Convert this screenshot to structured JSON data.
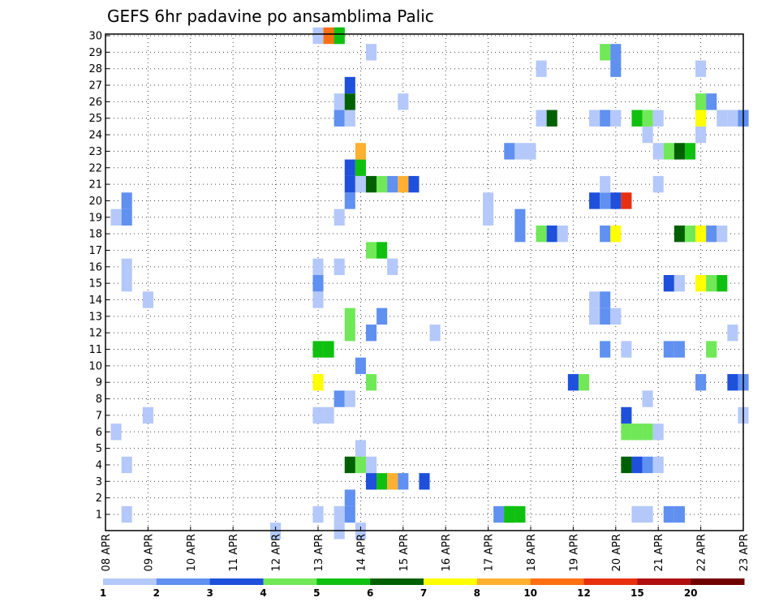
{
  "chart_data": {
    "type": "heatmap",
    "title": "GEFS 6hr padavine po ansamblima Palic",
    "x_ticks": [
      "08 APR",
      "09 APR",
      "10 APR",
      "11 APR",
      "12 APR",
      "13 APR",
      "14 APR",
      "15 APR",
      "16 APR",
      "17 APR",
      "18 APR",
      "19 APR",
      "20 APR",
      "21 APR",
      "22 APR",
      "23 APR"
    ],
    "y_ticks": [
      "1",
      "2",
      "3",
      "4",
      "5",
      "6",
      "7",
      "8",
      "9",
      "10",
      "11",
      "12",
      "13",
      "14",
      "15",
      "16",
      "17",
      "18",
      "19",
      "20",
      "21",
      "22",
      "23",
      "24",
      "25",
      "26",
      "27",
      "28",
      "29",
      "30"
    ],
    "x_unit": "6-hour step (0 = 08 APR 00Z, 4 steps per day)",
    "x_range": [
      0,
      60
    ],
    "y_range": [
      1,
      30
    ],
    "grid": true,
    "colorbar": {
      "labels": [
        "1",
        "2",
        "3",
        "4",
        "5",
        "6",
        "7",
        "8",
        "10",
        "12",
        "15",
        "20"
      ],
      "colors": [
        "#b4c8fa",
        "#6090f0",
        "#1e50dc",
        "#70e858",
        "#10c010",
        "#006000",
        "#ffff00",
        "#ffb030",
        "#ff7010",
        "#e83010",
        "#b01010",
        "#700000"
      ]
    },
    "cells": [
      [
        2,
        1,
        1
      ],
      [
        2,
        19,
        2
      ],
      [
        2,
        20,
        2
      ],
      [
        1,
        19,
        1
      ],
      [
        1,
        6,
        1
      ],
      [
        2,
        4,
        1
      ],
      [
        2,
        16,
        1
      ],
      [
        2,
        15,
        1
      ],
      [
        4,
        14,
        1
      ],
      [
        4,
        7,
        1
      ],
      [
        16,
        0,
        1
      ],
      [
        20,
        30,
        1
      ],
      [
        21,
        30,
        9
      ],
      [
        22,
        30,
        5
      ],
      [
        20,
        1,
        1
      ],
      [
        20,
        14,
        1
      ],
      [
        20,
        15,
        2
      ],
      [
        20,
        16,
        1
      ],
      [
        20,
        11,
        5
      ],
      [
        21,
        11,
        5
      ],
      [
        20,
        9,
        7
      ],
      [
        20,
        7,
        1
      ],
      [
        21,
        7,
        1
      ],
      [
        22,
        30,
        5
      ],
      [
        22,
        1,
        1
      ],
      [
        22,
        19,
        1
      ],
      [
        22,
        25,
        2
      ],
      [
        22,
        26,
        1
      ],
      [
        22,
        8,
        2
      ],
      [
        22,
        16,
        1
      ],
      [
        22,
        0,
        1
      ],
      [
        23,
        1,
        2
      ],
      [
        23,
        2,
        2
      ],
      [
        23,
        4,
        6
      ],
      [
        23,
        20,
        2
      ],
      [
        23,
        21,
        3
      ],
      [
        23,
        22,
        3
      ],
      [
        23,
        25,
        1
      ],
      [
        23,
        26,
        6
      ],
      [
        23,
        27,
        3
      ],
      [
        23,
        8,
        1
      ],
      [
        23,
        12,
        4
      ],
      [
        23,
        13,
        4
      ],
      [
        24,
        5,
        1
      ],
      [
        24,
        4,
        4
      ],
      [
        24,
        10,
        2
      ],
      [
        24,
        22,
        5
      ],
      [
        24,
        23,
        8
      ],
      [
        24,
        0,
        1
      ],
      [
        24,
        21,
        1
      ],
      [
        25,
        4,
        1
      ],
      [
        25,
        3,
        3
      ],
      [
        25,
        9,
        4
      ],
      [
        25,
        12,
        2
      ],
      [
        25,
        17,
        4
      ],
      [
        25,
        21,
        6
      ],
      [
        25,
        29,
        1
      ],
      [
        26,
        3,
        5
      ],
      [
        26,
        17,
        5
      ],
      [
        26,
        21,
        4
      ],
      [
        26,
        13,
        2
      ],
      [
        27,
        3,
        8
      ],
      [
        27,
        21,
        2
      ],
      [
        27,
        16,
        1
      ],
      [
        28,
        3,
        2
      ],
      [
        28,
        21,
        8
      ],
      [
        28,
        26,
        1
      ],
      [
        29,
        21,
        3
      ],
      [
        30,
        3,
        3
      ],
      [
        31,
        12,
        1
      ],
      [
        36,
        19,
        1
      ],
      [
        36,
        20,
        1
      ],
      [
        37,
        1,
        2
      ],
      [
        38,
        1,
        5
      ],
      [
        38,
        1,
        5
      ],
      [
        39,
        1,
        5
      ],
      [
        38,
        23,
        2
      ],
      [
        39,
        23,
        1
      ],
      [
        40,
        23,
        1
      ],
      [
        39,
        19,
        2
      ],
      [
        39,
        18,
        2
      ],
      [
        41,
        18,
        4
      ],
      [
        41,
        25,
        1
      ],
      [
        41,
        28,
        1
      ],
      [
        42,
        25,
        6
      ],
      [
        42,
        18,
        3
      ],
      [
        43,
        18,
        1
      ],
      [
        44,
        9,
        3
      ],
      [
        45,
        9,
        4
      ],
      [
        46,
        20,
        3
      ],
      [
        46,
        25,
        1
      ],
      [
        46,
        13,
        1
      ],
      [
        46,
        14,
        1
      ],
      [
        47,
        13,
        2
      ],
      [
        47,
        14,
        2
      ],
      [
        48,
        13,
        1
      ],
      [
        47,
        20,
        2
      ],
      [
        47,
        21,
        1
      ],
      [
        47,
        25,
        2
      ],
      [
        48,
        25,
        1
      ],
      [
        47,
        18,
        2
      ],
      [
        47,
        11,
        2
      ],
      [
        47,
        29,
        4
      ],
      [
        48,
        29,
        2
      ],
      [
        48,
        28,
        2
      ],
      [
        48,
        20,
        3
      ],
      [
        48,
        18,
        7
      ],
      [
        49,
        20,
        10
      ],
      [
        49,
        11,
        1
      ],
      [
        49,
        4,
        6
      ],
      [
        49,
        6,
        4
      ],
      [
        49,
        7,
        3
      ],
      [
        50,
        4,
        3
      ],
      [
        51,
        4,
        2
      ],
      [
        52,
        4,
        1
      ],
      [
        50,
        6,
        4
      ],
      [
        51,
        6,
        4
      ],
      [
        52,
        6,
        1
      ],
      [
        50,
        1,
        1
      ],
      [
        51,
        1,
        1
      ],
      [
        51,
        8,
        1
      ],
      [
        51,
        24,
        1
      ],
      [
        50,
        25,
        5
      ],
      [
        51,
        25,
        4
      ],
      [
        52,
        25,
        1
      ],
      [
        52,
        21,
        1
      ],
      [
        52,
        23,
        1
      ],
      [
        53,
        23,
        4
      ],
      [
        54,
        23,
        6
      ],
      [
        55,
        23,
        5
      ],
      [
        53,
        15,
        3
      ],
      [
        54,
        15,
        1
      ],
      [
        53,
        11,
        2
      ],
      [
        54,
        11,
        2
      ],
      [
        53,
        1,
        2
      ],
      [
        54,
        1,
        2
      ],
      [
        54,
        18,
        6
      ],
      [
        55,
        18,
        4
      ],
      [
        56,
        18,
        7
      ],
      [
        57,
        18,
        2
      ],
      [
        58,
        18,
        1
      ],
      [
        56,
        15,
        7
      ],
      [
        57,
        15,
        4
      ],
      [
        58,
        15,
        5
      ],
      [
        56,
        24,
        1
      ],
      [
        56,
        25,
        7
      ],
      [
        56,
        26,
        4
      ],
      [
        57,
        26,
        2
      ],
      [
        56,
        28,
        1
      ],
      [
        56,
        9,
        2
      ],
      [
        57,
        11,
        4
      ],
      [
        58,
        25,
        1
      ],
      [
        59,
        25,
        1
      ],
      [
        60,
        25,
        2
      ],
      [
        59,
        12,
        1
      ],
      [
        59,
        9,
        3
      ],
      [
        60,
        9,
        2
      ],
      [
        60,
        7,
        1
      ]
    ]
  }
}
